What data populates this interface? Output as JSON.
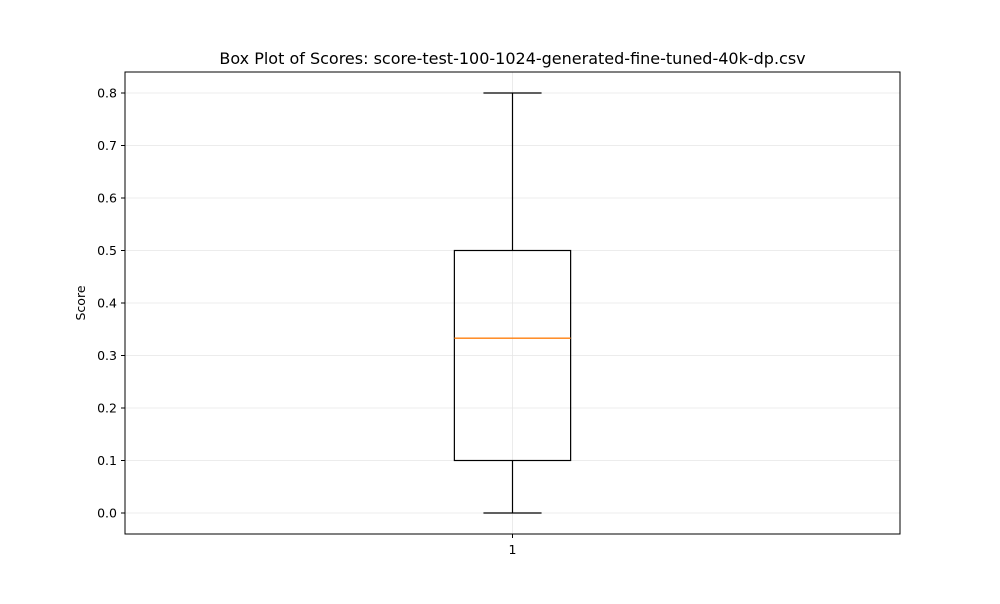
{
  "chart_data": {
    "type": "box",
    "title": "Box Plot of Scores: score-test-100-1024-generated-fine-tuned-40k-dp.csv",
    "xlabel": "",
    "ylabel": "Score",
    "categories": [
      "1"
    ],
    "series": [
      {
        "whisker_low": 0.0,
        "q1": 0.1,
        "median": 0.333,
        "q3": 0.5,
        "whisker_high": 0.8
      }
    ],
    "ylim": [
      -0.04,
      0.84
    ],
    "yticks": [
      0.0,
      0.1,
      0.2,
      0.3,
      0.4,
      0.5,
      0.6,
      0.7,
      0.8
    ],
    "ytick_labels": [
      "0.0",
      "0.1",
      "0.2",
      "0.3",
      "0.4",
      "0.5",
      "0.6",
      "0.7",
      "0.8"
    ],
    "grid": true,
    "colors": {
      "box": "#000000",
      "median": "#ff7f0e",
      "grid": "#e6e6e6"
    }
  }
}
